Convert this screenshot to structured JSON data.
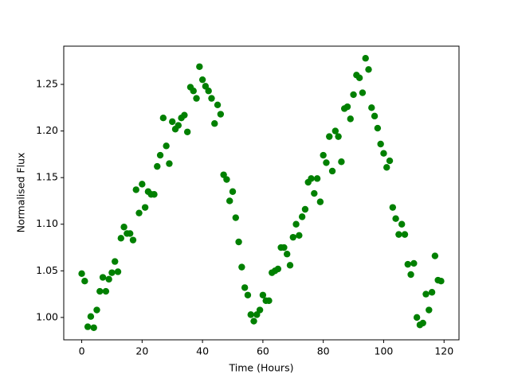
{
  "chart_data": {
    "type": "scatter",
    "xlabel": "Time (Hours)",
    "ylabel": "Normalised Flux",
    "color": "#008000",
    "x": [
      0,
      1,
      2,
      3,
      4,
      5,
      6,
      7,
      8,
      9,
      10,
      11,
      12,
      13,
      14,
      15,
      16,
      17,
      18,
      19,
      20,
      21,
      22,
      23,
      24,
      25,
      26,
      27,
      28,
      29,
      30,
      31,
      32,
      33,
      34,
      35,
      36,
      37,
      38,
      39,
      40,
      41,
      42,
      43,
      44,
      45,
      46,
      47,
      48,
      49,
      50,
      51,
      52,
      53,
      54,
      55,
      56,
      57,
      58,
      59,
      60,
      61,
      62,
      63,
      64,
      65,
      66,
      67,
      68,
      69,
      70,
      71,
      72,
      73,
      74,
      75,
      76,
      77,
      78,
      79,
      80,
      81,
      82,
      83,
      84,
      85,
      86,
      87,
      88,
      89,
      90,
      91,
      92,
      93,
      94,
      95,
      96,
      97,
      98,
      99,
      100,
      101,
      102,
      103,
      104,
      105,
      106,
      107,
      108,
      109,
      110,
      111,
      112,
      113,
      114,
      115,
      116,
      117,
      118,
      119
    ],
    "values": [
      1.047,
      1.039,
      0.99,
      1.001,
      0.989,
      1.008,
      1.028,
      1.043,
      1.028,
      1.041,
      1.048,
      1.06,
      1.049,
      1.085,
      1.097,
      1.09,
      1.09,
      1.083,
      1.137,
      1.112,
      1.143,
      1.118,
      1.135,
      1.132,
      1.132,
      1.162,
      1.174,
      1.214,
      1.184,
      1.165,
      1.21,
      1.202,
      1.206,
      1.214,
      1.217,
      1.199,
      1.247,
      1.243,
      1.235,
      1.269,
      1.255,
      1.248,
      1.243,
      1.235,
      1.208,
      1.228,
      1.218,
      1.153,
      1.148,
      1.125,
      1.135,
      1.107,
      1.081,
      1.054,
      1.032,
      1.024,
      1.003,
      0.996,
      1.003,
      1.008,
      1.024,
      1.018,
      1.018,
      1.048,
      1.05,
      1.052,
      1.075,
      1.075,
      1.068,
      1.056,
      1.086,
      1.1,
      1.088,
      1.108,
      1.116,
      1.145,
      1.149,
      1.133,
      1.149,
      1.124,
      1.174,
      1.166,
      1.194,
      1.157,
      1.2,
      1.194,
      1.167,
      1.224,
      1.226,
      1.213,
      1.239,
      1.26,
      1.257,
      1.241,
      1.278,
      1.266,
      1.225,
      1.216,
      1.203,
      1.186,
      1.176,
      1.161,
      1.168,
      1.118,
      1.106,
      1.089,
      1.1,
      1.089,
      1.057,
      1.046,
      1.058,
      1.0,
      0.992,
      0.994,
      1.025,
      1.008,
      1.027,
      1.066,
      1.04,
      1.039
    ],
    "xlim": [
      -5.95,
      124.95
    ],
    "ylim": [
      0.976,
      1.291
    ],
    "xticks": [
      0,
      20,
      40,
      60,
      80,
      100,
      120
    ],
    "yticks": [
      {
        "value": 1.0,
        "label": "1.00"
      },
      {
        "value": 1.05,
        "label": "1.05"
      },
      {
        "value": 1.1,
        "label": "1.10"
      },
      {
        "value": 1.15,
        "label": "1.15"
      },
      {
        "value": 1.2,
        "label": "1.20"
      },
      {
        "value": 1.25,
        "label": "1.25"
      }
    ],
    "grid": false
  }
}
